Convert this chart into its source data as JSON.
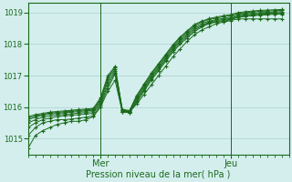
{
  "xlabel": "Pression niveau de la mer( hPa )",
  "bg_color": "#d4eeee",
  "line_color": "#1a6b1a",
  "grid_color": "#aacece",
  "axis_color": "#1a6b1a",
  "tick_color": "#1a6b1a",
  "label_color": "#1a6b1a",
  "ylim": [
    1014.5,
    1019.3
  ],
  "yticks": [
    1015,
    1016,
    1017,
    1018,
    1019
  ],
  "xlim": [
    0,
    36
  ],
  "mer_x": 10,
  "jeu_x": 28,
  "series": [
    [
      0,
      1014.7,
      1,
      1015.1,
      2,
      1015.25,
      3,
      1015.35,
      4,
      1015.45,
      5,
      1015.5,
      6,
      1015.55,
      7,
      1015.55,
      8,
      1015.6,
      9,
      1015.7,
      10,
      1016.0,
      11,
      1016.5,
      12,
      1016.85,
      13,
      1015.85,
      14,
      1015.85,
      15,
      1016.1,
      16,
      1016.4,
      17,
      1016.7,
      18,
      1017.0,
      19,
      1017.3,
      20,
      1017.6,
      21,
      1017.85,
      22,
      1018.1,
      23,
      1018.3,
      24,
      1018.45,
      25,
      1018.55,
      26,
      1018.65,
      27,
      1018.7,
      28,
      1018.75,
      29,
      1018.8,
      30,
      1018.8,
      31,
      1018.8,
      32,
      1018.8,
      33,
      1018.8,
      34,
      1018.8,
      35,
      1018.8
    ],
    [
      0,
      1015.1,
      1,
      1015.35,
      2,
      1015.5,
      3,
      1015.55,
      4,
      1015.6,
      5,
      1015.6,
      6,
      1015.62,
      7,
      1015.65,
      8,
      1015.68,
      9,
      1015.72,
      10,
      1016.05,
      11,
      1016.6,
      12,
      1017.05,
      13,
      1015.85,
      14,
      1015.82,
      15,
      1016.15,
      16,
      1016.5,
      17,
      1016.85,
      18,
      1017.15,
      19,
      1017.45,
      20,
      1017.75,
      21,
      1018.0,
      22,
      1018.2,
      23,
      1018.4,
      24,
      1018.55,
      25,
      1018.65,
      26,
      1018.7,
      27,
      1018.72,
      28,
      1018.78,
      29,
      1018.85,
      30,
      1018.88,
      31,
      1018.9,
      32,
      1018.92,
      33,
      1018.93,
      34,
      1018.95,
      35,
      1018.95
    ],
    [
      0,
      1015.35,
      1,
      1015.5,
      2,
      1015.6,
      3,
      1015.65,
      4,
      1015.7,
      5,
      1015.72,
      6,
      1015.74,
      7,
      1015.76,
      8,
      1015.78,
      9,
      1015.8,
      10,
      1016.1,
      11,
      1016.7,
      12,
      1017.1,
      13,
      1015.85,
      14,
      1015.82,
      15,
      1016.2,
      16,
      1016.55,
      17,
      1016.9,
      18,
      1017.2,
      19,
      1017.5,
      20,
      1017.8,
      21,
      1018.05,
      22,
      1018.25,
      23,
      1018.45,
      24,
      1018.58,
      25,
      1018.67,
      26,
      1018.72,
      27,
      1018.75,
      28,
      1018.8,
      29,
      1018.87,
      30,
      1018.9,
      31,
      1018.92,
      32,
      1018.94,
      33,
      1018.96,
      34,
      1018.97,
      35,
      1018.97
    ],
    [
      0,
      1015.5,
      1,
      1015.6,
      2,
      1015.68,
      3,
      1015.72,
      4,
      1015.75,
      5,
      1015.77,
      6,
      1015.79,
      7,
      1015.81,
      8,
      1015.83,
      9,
      1015.86,
      10,
      1016.15,
      11,
      1016.8,
      12,
      1017.15,
      13,
      1015.88,
      14,
      1015.84,
      15,
      1016.25,
      16,
      1016.6,
      17,
      1016.95,
      18,
      1017.25,
      19,
      1017.55,
      20,
      1017.85,
      21,
      1018.1,
      22,
      1018.3,
      23,
      1018.5,
      24,
      1018.6,
      25,
      1018.7,
      26,
      1018.75,
      27,
      1018.78,
      28,
      1018.82,
      29,
      1018.9,
      30,
      1018.93,
      31,
      1018.95,
      32,
      1018.97,
      33,
      1018.98,
      34,
      1018.99,
      35,
      1019.0
    ],
    [
      0,
      1015.6,
      1,
      1015.68,
      2,
      1015.74,
      3,
      1015.78,
      4,
      1015.8,
      5,
      1015.82,
      6,
      1015.84,
      7,
      1015.86,
      8,
      1015.88,
      9,
      1015.9,
      10,
      1016.2,
      11,
      1016.9,
      12,
      1017.2,
      13,
      1015.9,
      14,
      1015.86,
      15,
      1016.3,
      16,
      1016.65,
      17,
      1017.0,
      18,
      1017.3,
      19,
      1017.6,
      20,
      1017.9,
      21,
      1018.15,
      22,
      1018.35,
      23,
      1018.55,
      24,
      1018.65,
      25,
      1018.73,
      26,
      1018.78,
      27,
      1018.82,
      28,
      1018.86,
      29,
      1018.93,
      30,
      1018.96,
      31,
      1018.98,
      32,
      1019.0,
      33,
      1019.01,
      34,
      1019.02,
      35,
      1019.03
    ],
    [
      0,
      1015.65,
      1,
      1015.72,
      2,
      1015.77,
      3,
      1015.81,
      4,
      1015.83,
      5,
      1015.85,
      6,
      1015.87,
      7,
      1015.89,
      8,
      1015.91,
      9,
      1015.93,
      10,
      1016.25,
      11,
      1016.95,
      12,
      1017.25,
      13,
      1015.91,
      14,
      1015.87,
      15,
      1016.35,
      16,
      1016.7,
      17,
      1017.05,
      18,
      1017.35,
      19,
      1017.65,
      20,
      1017.95,
      21,
      1018.2,
      22,
      1018.4,
      23,
      1018.6,
      24,
      1018.7,
      25,
      1018.78,
      26,
      1018.83,
      27,
      1018.87,
      28,
      1018.91,
      29,
      1018.97,
      30,
      1019.0,
      31,
      1019.02,
      32,
      1019.04,
      33,
      1019.05,
      34,
      1019.06,
      35,
      1019.07
    ],
    [
      0,
      1015.7,
      1,
      1015.76,
      2,
      1015.8,
      3,
      1015.84,
      4,
      1015.86,
      5,
      1015.88,
      6,
      1015.9,
      7,
      1015.92,
      8,
      1015.94,
      9,
      1015.96,
      10,
      1016.3,
      11,
      1017.0,
      12,
      1017.3,
      13,
      1015.93,
      14,
      1015.89,
      15,
      1016.38,
      16,
      1016.73,
      17,
      1017.08,
      18,
      1017.38,
      19,
      1017.68,
      20,
      1017.98,
      21,
      1018.23,
      22,
      1018.43,
      23,
      1018.63,
      24,
      1018.73,
      25,
      1018.81,
      26,
      1018.86,
      27,
      1018.9,
      28,
      1018.94,
      29,
      1019.0,
      30,
      1019.03,
      31,
      1019.05,
      32,
      1019.07,
      33,
      1019.08,
      34,
      1019.09,
      35,
      1019.1
    ]
  ]
}
